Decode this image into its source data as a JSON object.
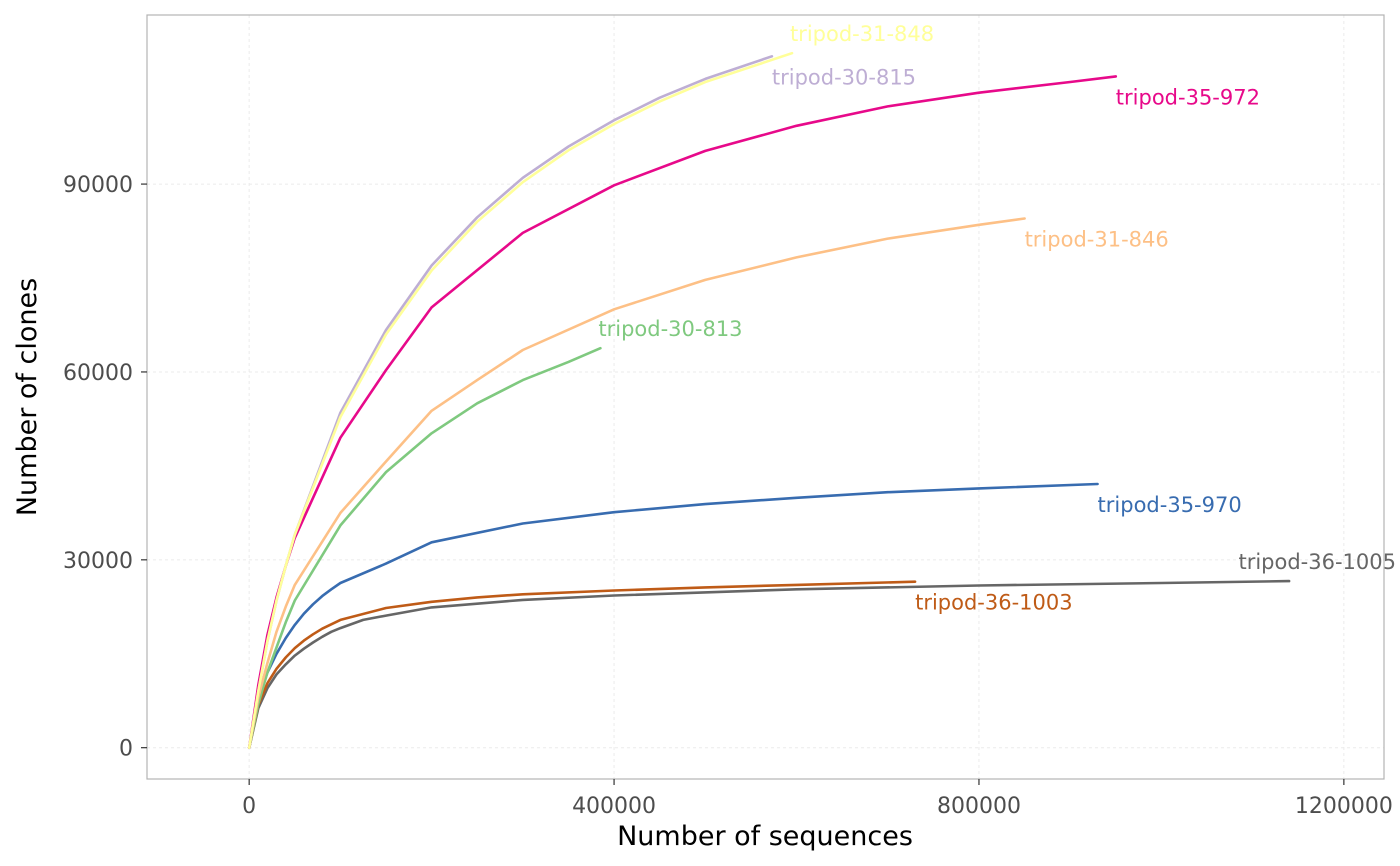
{
  "chart_data": {
    "type": "line",
    "title": "",
    "xlabel": "Number of sequences",
    "ylabel": "Number of clones",
    "xlim": [
      -112000,
      1244000
    ],
    "ylim": [
      -5000,
      117000
    ],
    "x_ticks": [
      0,
      400000,
      800000,
      1200000
    ],
    "x_tick_labels": [
      "0",
      "400000",
      "800000",
      "1200000"
    ],
    "y_ticks": [
      0,
      30000,
      60000,
      90000
    ],
    "y_tick_labels": [
      "0",
      "30000",
      "60000",
      "90000"
    ],
    "grid": true,
    "legend": "none",
    "series": [
      {
        "name": "tripod-36-1005",
        "color": "#666666",
        "label_pos": "above-end",
        "points": [
          [
            0,
            0
          ],
          [
            10000,
            6300
          ],
          [
            20000,
            9500
          ],
          [
            30000,
            11700
          ],
          [
            40000,
            13300
          ],
          [
            50000,
            14700
          ],
          [
            60000,
            15800
          ],
          [
            70000,
            16800
          ],
          [
            80000,
            17700
          ],
          [
            90000,
            18500
          ],
          [
            100000,
            19100
          ],
          [
            125000,
            20400
          ],
          [
            150000,
            21100
          ],
          [
            200000,
            22400
          ],
          [
            300000,
            23600
          ],
          [
            400000,
            24300
          ],
          [
            600000,
            25300
          ],
          [
            800000,
            25900
          ],
          [
            1000000,
            26300
          ],
          [
            1140000,
            26600
          ]
        ]
      },
      {
        "name": "tripod-36-1003",
        "color": "#BF5B17",
        "label_pos": "below-end",
        "points": [
          [
            0,
            0
          ],
          [
            10000,
            6800
          ],
          [
            20000,
            10300
          ],
          [
            30000,
            12600
          ],
          [
            40000,
            14400
          ],
          [
            50000,
            15900
          ],
          [
            60000,
            17100
          ],
          [
            70000,
            18100
          ],
          [
            80000,
            19000
          ],
          [
            90000,
            19700
          ],
          [
            100000,
            20400
          ],
          [
            150000,
            22300
          ],
          [
            200000,
            23300
          ],
          [
            250000,
            24000
          ],
          [
            300000,
            24500
          ],
          [
            400000,
            25100
          ],
          [
            500000,
            25600
          ],
          [
            600000,
            26000
          ],
          [
            730000,
            26500
          ]
        ]
      },
      {
        "name": "tripod-35-970",
        "color": "#386CB0",
        "label_pos": "below-end",
        "points": [
          [
            0,
            0
          ],
          [
            10000,
            7800
          ],
          [
            20000,
            12000
          ],
          [
            30000,
            15000
          ],
          [
            40000,
            17500
          ],
          [
            50000,
            19600
          ],
          [
            60000,
            21400
          ],
          [
            70000,
            22900
          ],
          [
            80000,
            24200
          ],
          [
            90000,
            25300
          ],
          [
            100000,
            26300
          ],
          [
            150000,
            29400
          ],
          [
            200000,
            32800
          ],
          [
            300000,
            35800
          ],
          [
            400000,
            37600
          ],
          [
            500000,
            38900
          ],
          [
            600000,
            39900
          ],
          [
            700000,
            40800
          ],
          [
            800000,
            41400
          ],
          [
            930000,
            42100
          ]
        ]
      },
      {
        "name": "tripod-30-813",
        "color": "#7FC97F",
        "label_pos": "above-end",
        "points": [
          [
            0,
            0
          ],
          [
            10000,
            7000
          ],
          [
            20000,
            12000
          ],
          [
            30000,
            16000
          ],
          [
            40000,
            20000
          ],
          [
            50000,
            23500
          ],
          [
            100000,
            35500
          ],
          [
            150000,
            44000
          ],
          [
            200000,
            50200
          ],
          [
            250000,
            55000
          ],
          [
            300000,
            58700
          ],
          [
            350000,
            61600
          ],
          [
            385000,
            63800
          ]
        ]
      },
      {
        "name": "tripod-31-846",
        "color": "#FDC086",
        "label_pos": "below-end",
        "points": [
          [
            0,
            0
          ],
          [
            10000,
            8000
          ],
          [
            20000,
            13500
          ],
          [
            30000,
            18500
          ],
          [
            40000,
            22500
          ],
          [
            50000,
            26000
          ],
          [
            100000,
            37500
          ],
          [
            150000,
            45700
          ],
          [
            200000,
            53800
          ],
          [
            250000,
            58700
          ],
          [
            300000,
            63500
          ],
          [
            400000,
            70000
          ],
          [
            500000,
            74700
          ],
          [
            600000,
            78300
          ],
          [
            700000,
            81300
          ],
          [
            800000,
            83500
          ],
          [
            850000,
            84500
          ]
        ]
      },
      {
        "name": "tripod-35-972",
        "color": "#E7098A",
        "label_pos": "below-end",
        "points": [
          [
            0,
            0
          ],
          [
            10000,
            10000
          ],
          [
            20000,
            18000
          ],
          [
            30000,
            24000
          ],
          [
            40000,
            29000
          ],
          [
            50000,
            33500
          ],
          [
            100000,
            49500
          ],
          [
            150000,
            60300
          ],
          [
            200000,
            70300
          ],
          [
            300000,
            82200
          ],
          [
            400000,
            89800
          ],
          [
            500000,
            95300
          ],
          [
            600000,
            99300
          ],
          [
            700000,
            102400
          ],
          [
            800000,
            104600
          ],
          [
            900000,
            106300
          ],
          [
            950000,
            107200
          ]
        ]
      },
      {
        "name": "tripod-30-815",
        "color": "#BEAED4",
        "label_pos": "below-end",
        "points": [
          [
            0,
            0
          ],
          [
            10000,
            9000
          ],
          [
            20000,
            17000
          ],
          [
            30000,
            23500
          ],
          [
            40000,
            29000
          ],
          [
            50000,
            34000
          ],
          [
            100000,
            53500
          ],
          [
            150000,
            66700
          ],
          [
            200000,
            77000
          ],
          [
            250000,
            84700
          ],
          [
            300000,
            91000
          ],
          [
            350000,
            96000
          ],
          [
            400000,
            100200
          ],
          [
            450000,
            103800
          ],
          [
            500000,
            106800
          ],
          [
            573000,
            110400
          ]
        ]
      },
      {
        "name": "tripod-31-848",
        "color": "#FFFF99",
        "label_pos": "above-end",
        "points": [
          [
            0,
            0
          ],
          [
            10000,
            9000
          ],
          [
            20000,
            17000
          ],
          [
            30000,
            23500
          ],
          [
            40000,
            29000
          ],
          [
            50000,
            34000
          ],
          [
            100000,
            52800
          ],
          [
            150000,
            66000
          ],
          [
            200000,
            76200
          ],
          [
            250000,
            84000
          ],
          [
            300000,
            90300
          ],
          [
            350000,
            95400
          ],
          [
            400000,
            99600
          ],
          [
            450000,
            103200
          ],
          [
            500000,
            106300
          ],
          [
            595000,
            110900
          ]
        ]
      }
    ]
  }
}
